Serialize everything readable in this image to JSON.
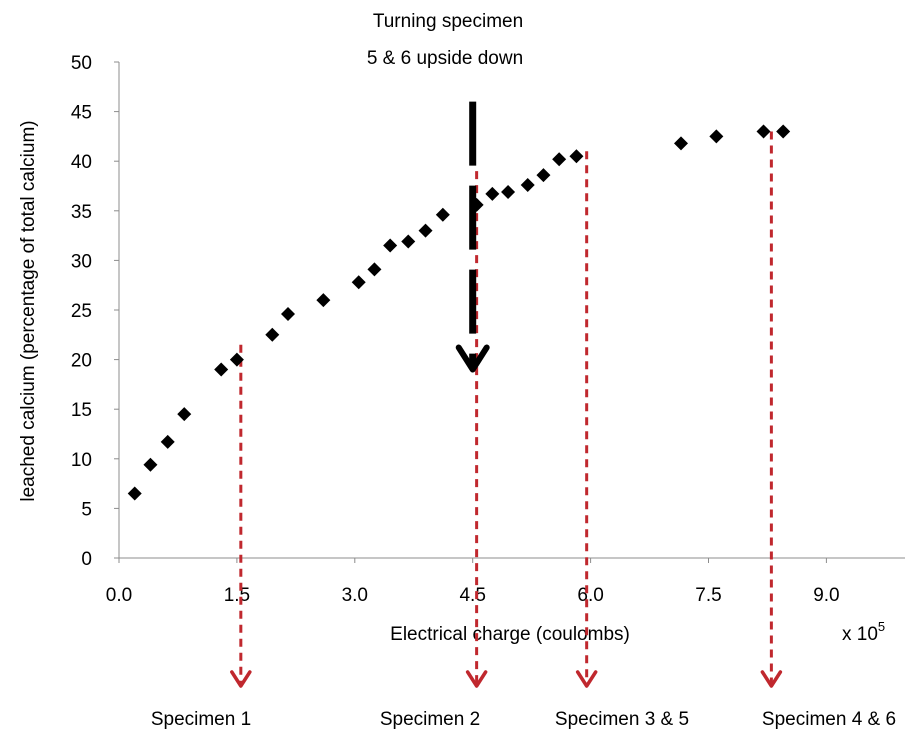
{
  "chart_data": {
    "type": "scatter",
    "title": "",
    "xlabel": "Electrical charge (coulombs)",
    "x_multiplier_label": "x 10",
    "x_multiplier_exponent": "5",
    "ylabel": "leached calcium (percentage of total calcium)",
    "xlim": [
      0,
      10
    ],
    "ylim": [
      0,
      50
    ],
    "x_ticks": [
      "0.0",
      "1.5",
      "3.0",
      "4.5",
      "6.0",
      "7.5",
      "9.0"
    ],
    "y_ticks": [
      "0",
      "5",
      "10",
      "15",
      "20",
      "25",
      "30",
      "35",
      "40",
      "45",
      "50"
    ],
    "grid": false,
    "marker": "diamond",
    "marker_color": "#000000",
    "series": [
      {
        "points": [
          [
            0.2,
            6.5
          ],
          [
            0.4,
            9.4
          ],
          [
            0.62,
            11.7
          ],
          [
            0.83,
            14.5
          ],
          [
            1.3,
            19.0
          ],
          [
            1.5,
            20.0
          ],
          [
            1.95,
            22.5
          ],
          [
            2.15,
            24.6
          ],
          [
            2.6,
            26.0
          ],
          [
            3.05,
            27.8
          ],
          [
            3.25,
            29.1
          ],
          [
            3.45,
            31.5
          ],
          [
            3.68,
            31.9
          ],
          [
            3.9,
            33.0
          ],
          [
            4.12,
            34.6
          ],
          [
            4.55,
            35.6
          ],
          [
            4.75,
            36.7
          ],
          [
            4.95,
            36.9
          ],
          [
            5.2,
            37.6
          ],
          [
            5.4,
            38.6
          ],
          [
            5.6,
            40.2
          ],
          [
            5.82,
            40.5
          ],
          [
            7.15,
            41.8
          ],
          [
            7.6,
            42.5
          ],
          [
            8.2,
            43.0
          ],
          [
            8.45,
            43.0
          ]
        ]
      }
    ],
    "annotations": [
      {
        "text_lines": [
          "Turning  specimen",
          "5 & 6 upside down"
        ],
        "arrow_color": "#000000",
        "arrow_style": "dashed",
        "arrow_x": 4.5,
        "arrow_from_y": 46,
        "arrow_to_y": 19
      }
    ],
    "specimen_markers": [
      {
        "label": "Specimen 1",
        "x": 1.55,
        "color": "#c0282e"
      },
      {
        "label": "Specimen 2",
        "x": 4.55,
        "color": "#c0282e"
      },
      {
        "label": "Specimen 3 & 5",
        "x": 5.95,
        "color": "#c0282e"
      },
      {
        "label": "Specimen 4 & 6",
        "x": 8.3,
        "color": "#c0282e"
      }
    ],
    "marker_line_tops": [
      21.5,
      39.0,
      41.0,
      43.0
    ]
  }
}
